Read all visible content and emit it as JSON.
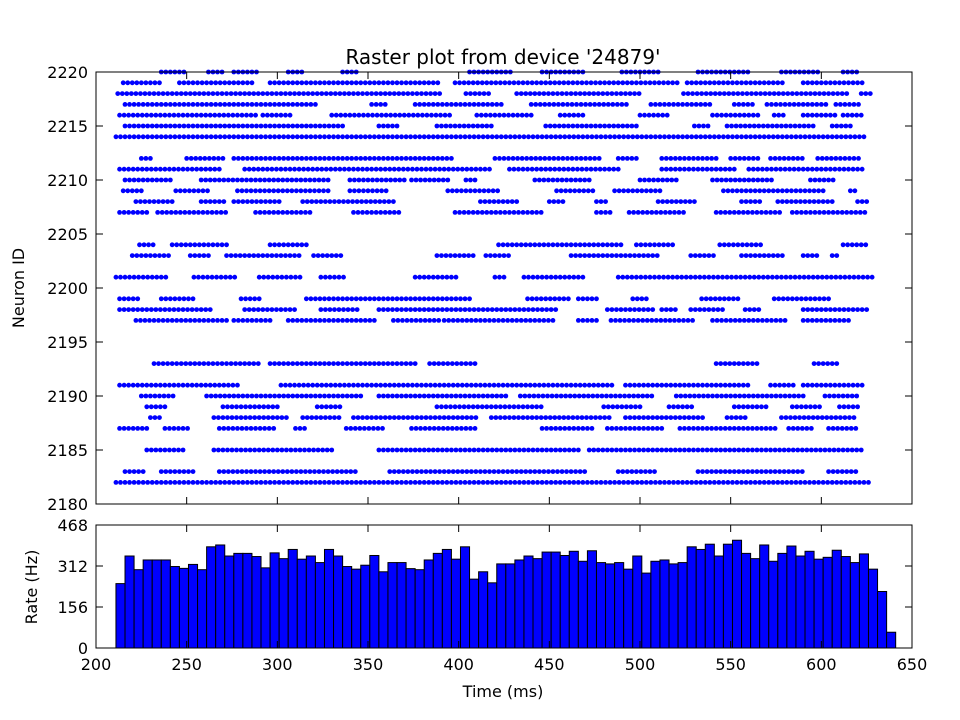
{
  "chart_data": [
    {
      "type": "scatter",
      "title": "Raster plot from device '24879'",
      "ylabel": "Neuron ID",
      "xlim": [
        200,
        650
      ],
      "ylim": [
        2180,
        2220
      ],
      "x_ticks": [
        200,
        250,
        300,
        350,
        400,
        450,
        500,
        550,
        600,
        650
      ],
      "y_ticks": [
        2180,
        2185,
        2190,
        2195,
        2200,
        2205,
        2210,
        2215,
        2220
      ],
      "x_tick_labels_shown": false,
      "marker": "dot",
      "color": "#0000ff",
      "spike_interval_ms": 2.5,
      "spike_times_range_ms": [
        211,
        626
      ],
      "neurons": [
        {
          "id": 2182,
          "segments": [
            [
              211,
              627
            ]
          ]
        },
        {
          "id": 2183,
          "segments": [
            [
              216,
              227
            ],
            [
              236,
              255
            ],
            [
              268,
              345
            ],
            [
              362,
              470
            ],
            [
              488,
              510
            ],
            [
              532,
              590
            ],
            [
              604,
              620
            ]
          ]
        },
        {
          "id": 2185,
          "segments": [
            [
              228,
              248
            ],
            [
              265,
              332
            ],
            [
              356,
              468
            ],
            [
              472,
              624
            ]
          ]
        },
        {
          "id": 2187,
          "segments": [
            [
              213,
              230
            ],
            [
              238,
              252
            ],
            [
              268,
              300
            ],
            [
              310,
              316
            ],
            [
              338,
              358
            ],
            [
              374,
              410
            ],
            [
              446,
              474
            ],
            [
              482,
              512
            ],
            [
              522,
              575
            ],
            [
              582,
              596
            ],
            [
              604,
              620
            ]
          ]
        },
        {
          "id": 2188,
          "segments": [
            [
              230,
              235
            ],
            [
              265,
              305
            ],
            [
              314,
              334
            ],
            [
              342,
              410
            ],
            [
              418,
              485
            ],
            [
              492,
              536
            ],
            [
              548,
              560
            ],
            [
              578,
              620
            ]
          ]
        },
        {
          "id": 2189,
          "segments": [
            [
              228,
              240
            ],
            [
              270,
              300
            ],
            [
              322,
              336
            ],
            [
              388,
              446
            ],
            [
              480,
              500
            ],
            [
              516,
              530
            ],
            [
              552,
              570
            ],
            [
              584,
              600
            ],
            [
              610,
              620
            ]
          ]
        },
        {
          "id": 2190,
          "segments": [
            [
              225,
              243
            ],
            [
              261,
              346
            ],
            [
              356,
              428
            ],
            [
              434,
              508
            ],
            [
              520,
              592
            ],
            [
              602,
              620
            ]
          ]
        },
        {
          "id": 2191,
          "segments": [
            [
              213,
              280
            ],
            [
              302,
              486
            ],
            [
              492,
              560
            ],
            [
              572,
              585
            ],
            [
              590,
              624
            ]
          ]
        },
        {
          "id": 2193,
          "segments": [
            [
              232,
              290
            ],
            [
              296,
              376
            ],
            [
              384,
              410
            ],
            [
              542,
              565
            ],
            [
              596,
              610
            ]
          ]
        },
        {
          "id": 2197,
          "segments": [
            [
              222,
              272
            ],
            [
              276,
              298
            ],
            [
              306,
              354
            ],
            [
              364,
              390
            ],
            [
              392,
              452
            ],
            [
              466,
              476
            ],
            [
              484,
              530
            ],
            [
              540,
              582
            ],
            [
              590,
              616
            ]
          ]
        },
        {
          "id": 2198,
          "segments": [
            [
              213,
              265
            ],
            [
              282,
              310
            ],
            [
              324,
              345
            ],
            [
              356,
              454
            ],
            [
              482,
              508
            ],
            [
              512,
              520
            ],
            [
              528,
              547
            ],
            [
              558,
              566
            ],
            [
              590,
              625
            ]
          ]
        },
        {
          "id": 2199,
          "segments": [
            [
              213,
              225
            ],
            [
              236,
              255
            ],
            [
              280,
              290
            ],
            [
              316,
              406
            ],
            [
              438,
              461
            ],
            [
              466,
              478
            ],
            [
              496,
              504
            ],
            [
              534,
              556
            ],
            [
              574,
              606
            ]
          ]
        },
        {
          "id": 2201,
          "segments": [
            [
              211,
              240
            ],
            [
              254,
              278
            ],
            [
              290,
              314
            ],
            [
              324,
              338
            ],
            [
              376,
              400
            ],
            [
              420,
              426
            ],
            [
              436,
              470
            ],
            [
              488,
              628
            ]
          ]
        },
        {
          "id": 2203,
          "segments": [
            [
              220,
              242
            ],
            [
              252,
              262
            ],
            [
              272,
              314
            ],
            [
              320,
              335
            ],
            [
              388,
              408
            ],
            [
              415,
              428
            ],
            [
              462,
              510
            ],
            [
              528,
              542
            ],
            [
              556,
              580
            ],
            [
              590,
              598
            ],
            [
              606,
              610
            ]
          ]
        },
        {
          "id": 2204,
          "segments": [
            [
              224,
              232
            ],
            [
              242,
              272
            ],
            [
              296,
              316
            ],
            [
              422,
              490
            ],
            [
              498,
              518
            ],
            [
              544,
              568
            ],
            [
              612,
              626
            ]
          ]
        },
        {
          "id": 2207,
          "segments": [
            [
              213,
              228
            ],
            [
              234,
              272
            ],
            [
              288,
              318
            ],
            [
              342,
              368
            ],
            [
              398,
              446
            ],
            [
              476,
              484
            ],
            [
              494,
              526
            ],
            [
              542,
              578
            ],
            [
              584,
              625
            ]
          ]
        },
        {
          "id": 2208,
          "segments": [
            [
              222,
              242
            ],
            [
              258,
              272
            ],
            [
              276,
              302
            ],
            [
              314,
              366
            ],
            [
              412,
              434
            ],
            [
              450,
              458
            ],
            [
              476,
              482
            ],
            [
              510,
              530
            ],
            [
              556,
              568
            ],
            [
              576,
              608
            ],
            [
              620,
              625
            ]
          ]
        },
        {
          "id": 2209,
          "segments": [
            [
              215,
              226
            ],
            [
              244,
              262
            ],
            [
              278,
              330
            ],
            [
              340,
              360
            ],
            [
              394,
              422
            ],
            [
              454,
              474
            ],
            [
              486,
              512
            ],
            [
              546,
              602
            ],
            [
              616,
              620
            ]
          ]
        },
        {
          "id": 2210,
          "segments": [
            [
              216,
              242
            ],
            [
              258,
              330
            ],
            [
              340,
              370
            ],
            [
              374,
              394
            ],
            [
              404,
              410
            ],
            [
              442,
              474
            ],
            [
              500,
              520
            ],
            [
              540,
              574
            ],
            [
              594,
              608
            ]
          ]
        },
        {
          "id": 2211,
          "segments": [
            [
              213,
              270
            ],
            [
              282,
              418
            ],
            [
              428,
              488
            ],
            [
              512,
              554
            ],
            [
              560,
              624
            ]
          ]
        },
        {
          "id": 2212,
          "segments": [
            [
              225,
              232
            ],
            [
              250,
              270
            ],
            [
              276,
              398
            ],
            [
              420,
              478
            ],
            [
              488,
              500
            ],
            [
              512,
              542
            ],
            [
              550,
              566
            ],
            [
              572,
              590
            ],
            [
              598,
              621
            ]
          ]
        },
        {
          "id": 2214,
          "segments": [
            [
              211,
              624
            ]
          ]
        },
        {
          "id": 2215,
          "segments": [
            [
              216,
              336
            ],
            [
              356,
              366
            ],
            [
              388,
              420
            ],
            [
              448,
              498
            ],
            [
              530,
              538
            ],
            [
              548,
              596
            ],
            [
              606,
              618
            ]
          ]
        },
        {
          "id": 2216,
          "segments": [
            [
              213,
              290
            ],
            [
              292,
              308
            ],
            [
              330,
              395
            ],
            [
              410,
              440
            ],
            [
              456,
              470
            ],
            [
              500,
              516
            ],
            [
              540,
              565
            ],
            [
              574,
              580
            ],
            [
              590,
              608
            ],
            [
              612,
              624
            ]
          ]
        },
        {
          "id": 2217,
          "segments": [
            [
              216,
              322
            ],
            [
              352,
              360
            ],
            [
              376,
              424
            ],
            [
              440,
              494
            ],
            [
              506,
              540
            ],
            [
              552,
              564
            ],
            [
              570,
              604
            ],
            [
              608,
              622
            ]
          ]
        },
        {
          "id": 2218,
          "segments": [
            [
              212,
              390
            ],
            [
              404,
              418
            ],
            [
              432,
              500
            ],
            [
              524,
              616
            ],
            [
              622,
              628
            ]
          ]
        },
        {
          "id": 2219,
          "segments": [
            [
              215,
              236
            ],
            [
              246,
              286
            ],
            [
              296,
              390
            ],
            [
              398,
              522
            ],
            [
              526,
              580
            ],
            [
              590,
              624
            ]
          ]
        },
        {
          "id": 2220,
          "segments": [
            [
              236,
              250
            ],
            [
              262,
              270
            ],
            [
              276,
              290
            ],
            [
              306,
              315
            ],
            [
              336,
              344
            ],
            [
              406,
              430
            ],
            [
              446,
              470
            ],
            [
              490,
              510
            ],
            [
              532,
              560
            ],
            [
              578,
              600
            ],
            [
              612,
              620
            ]
          ]
        }
      ]
    },
    {
      "type": "bar",
      "ylabel": "Rate (Hz)",
      "xlabel": "Time (ms)",
      "xlim": [
        200,
        650
      ],
      "ylim": [
        0,
        468
      ],
      "x_ticks": [
        200,
        250,
        300,
        350,
        400,
        450,
        500,
        550,
        600,
        650
      ],
      "y_ticks": [
        0,
        156,
        312,
        468
      ],
      "bin_width_ms": 5,
      "first_bin_start_ms": 211,
      "color": "#0000ff",
      "values": [
        245,
        350,
        298,
        335,
        335,
        335,
        310,
        303,
        318,
        298,
        385,
        392,
        350,
        360,
        360,
        348,
        305,
        362,
        340,
        375,
        338,
        350,
        325,
        375,
        350,
        310,
        300,
        315,
        352,
        290,
        325,
        325,
        302,
        298,
        335,
        360,
        375,
        338,
        385,
        262,
        290,
        248,
        320,
        320,
        335,
        350,
        340,
        365,
        365,
        352,
        368,
        330,
        370,
        325,
        320,
        325,
        300,
        350,
        285,
        330,
        335,
        320,
        325,
        385,
        375,
        395,
        350,
        395,
        410,
        360,
        340,
        392,
        330,
        360,
        388,
        350,
        368,
        338,
        345,
        372,
        348,
        325,
        358,
        300,
        215,
        60
      ]
    }
  ]
}
